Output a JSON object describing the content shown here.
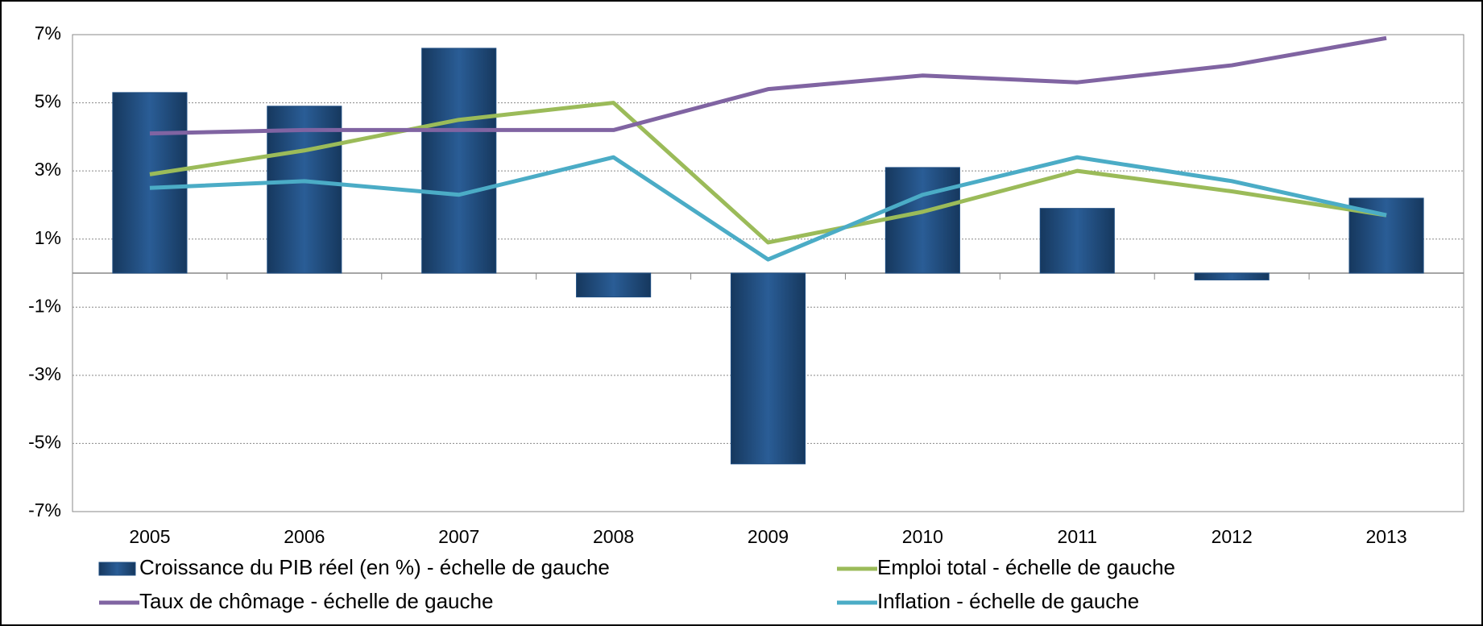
{
  "chart_data": {
    "type": "bar",
    "categories": [
      "2005",
      "2006",
      "2007",
      "2008",
      "2009",
      "2010",
      "2011",
      "2012",
      "2013"
    ],
    "series": [
      {
        "name": "Croissance du PIB réel (en %) - échelle de gauche",
        "type": "bar",
        "color": "#1f4e82",
        "values": [
          5.3,
          4.9,
          6.6,
          -0.7,
          -5.6,
          3.1,
          1.9,
          -0.2,
          2.2
        ]
      },
      {
        "name": "Emploi total - échelle de gauche",
        "type": "line",
        "color": "#9bbb59",
        "values": [
          2.9,
          3.6,
          4.5,
          5.0,
          0.9,
          1.8,
          3.0,
          2.4,
          1.7
        ]
      },
      {
        "name": "Taux de chômage - échelle de gauche",
        "type": "line",
        "color": "#8064a2",
        "values": [
          4.1,
          4.2,
          4.2,
          4.2,
          5.4,
          5.8,
          5.6,
          6.1,
          6.9
        ]
      },
      {
        "name": "Inflation - échelle de gauche",
        "type": "line",
        "color": "#4bacc6",
        "values": [
          2.5,
          2.7,
          2.3,
          3.4,
          0.4,
          2.3,
          3.4,
          2.7,
          1.7
        ]
      }
    ],
    "ylim": [
      -7,
      7
    ],
    "yticks": [
      {
        "value": -7,
        "label": "-7%"
      },
      {
        "value": -5,
        "label": "-5%"
      },
      {
        "value": -3,
        "label": "-3%"
      },
      {
        "value": -1,
        "label": "-1%"
      },
      {
        "value": 1,
        "label": "1%"
      },
      {
        "value": 3,
        "label": "3%"
      },
      {
        "value": 5,
        "label": "5%"
      },
      {
        "value": 7,
        "label": "7%"
      }
    ],
    "grid": true
  }
}
